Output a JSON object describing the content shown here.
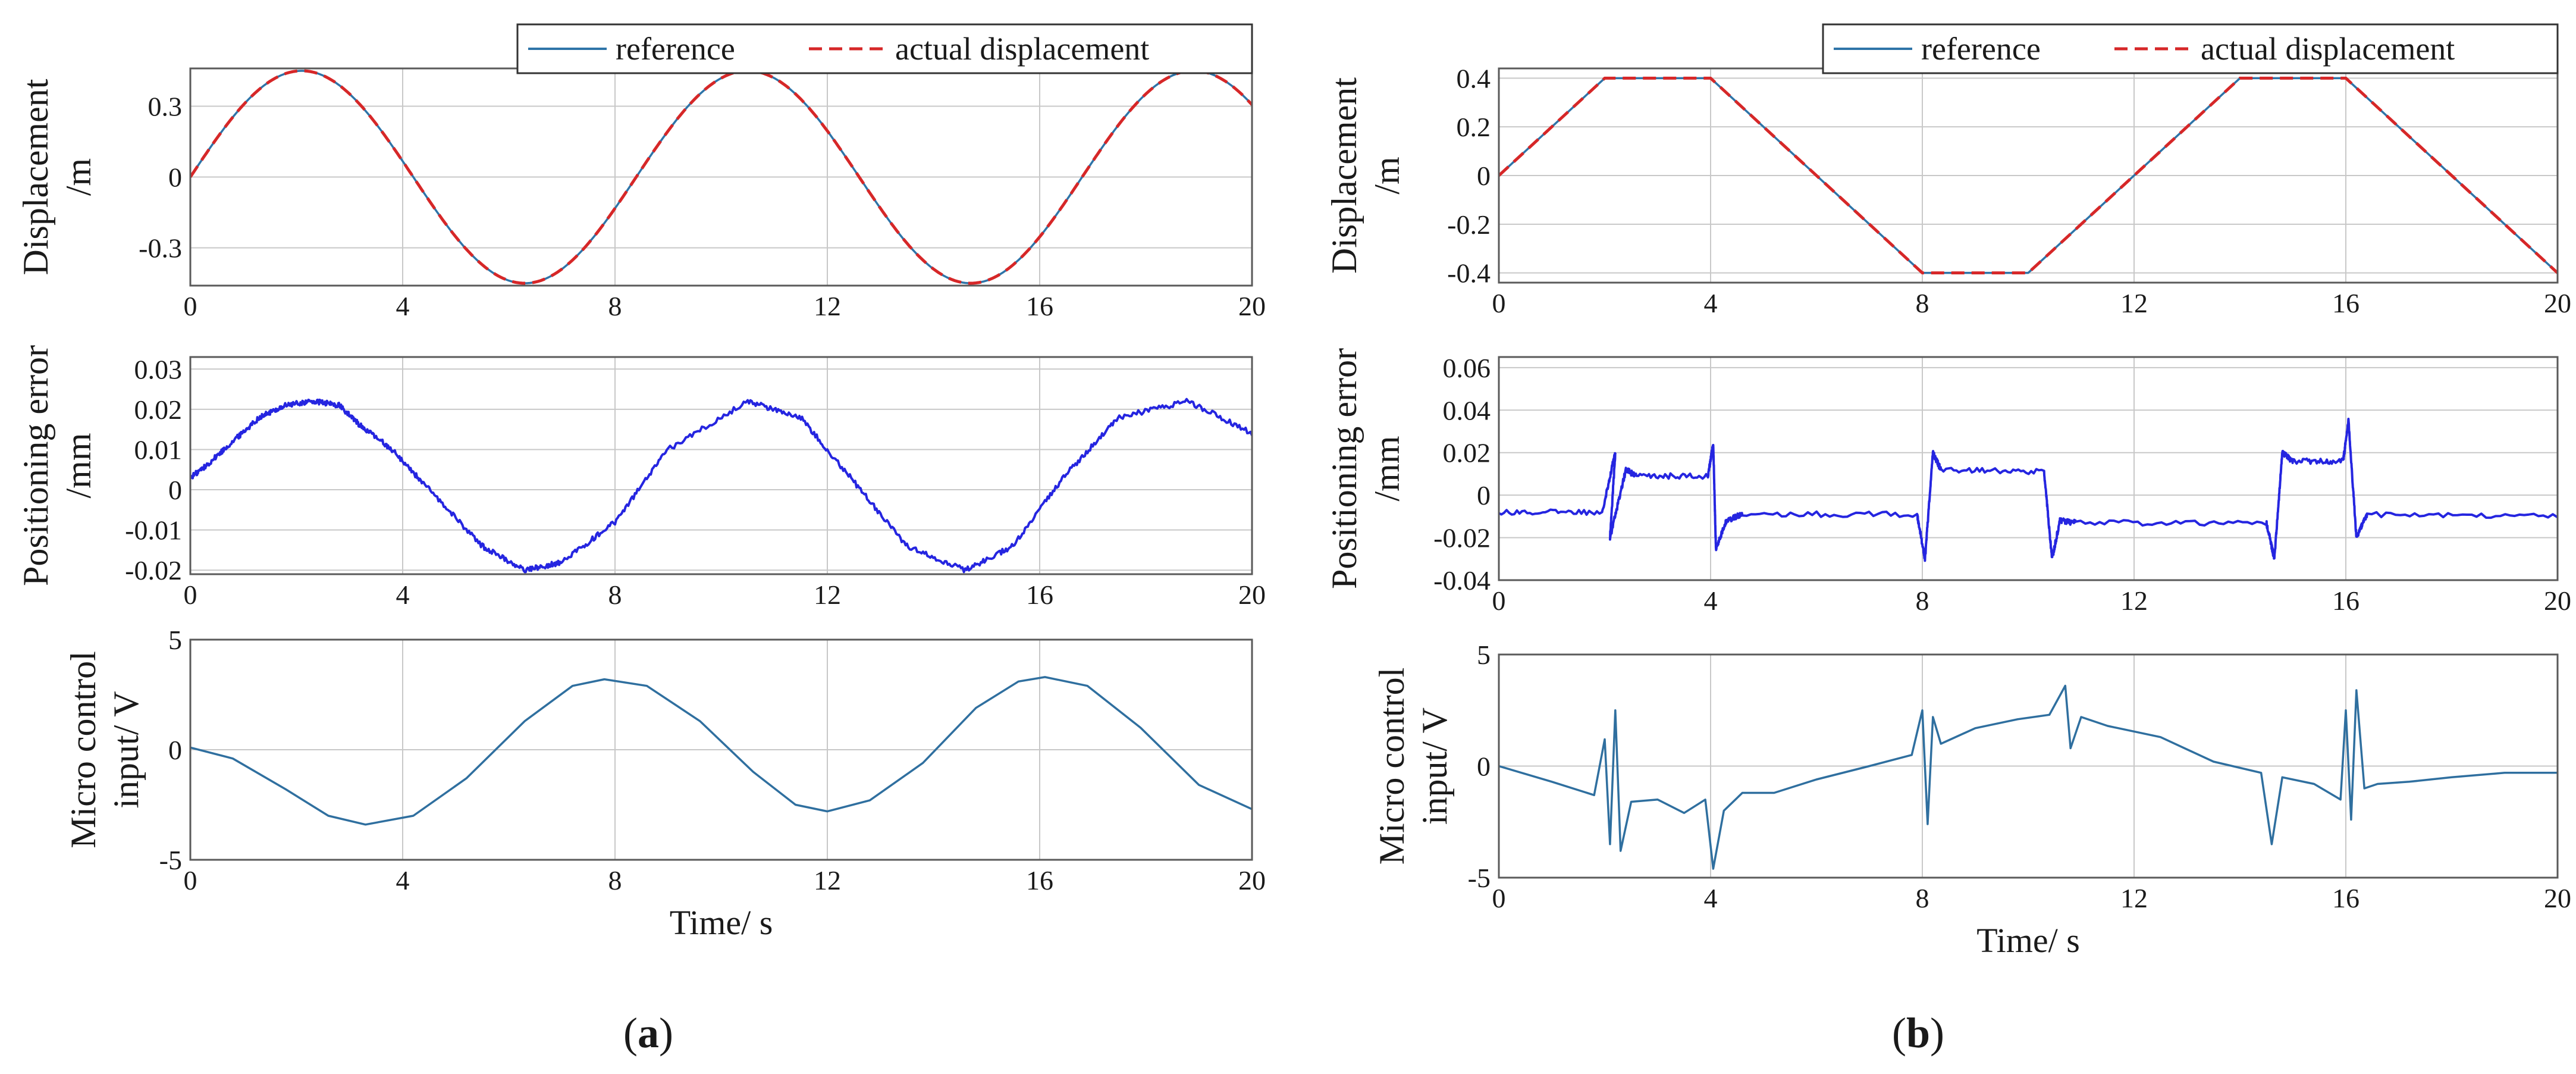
{
  "figure": {
    "colors": {
      "reference": "#2e74a8",
      "actual": "#d62728",
      "error": "#2525e0",
      "control": "#2f6f9f",
      "grid": "#c8c8c8",
      "axis": "#5a5a5a"
    },
    "panels": [
      {
        "label_pre": "(",
        "label_letter": "a",
        "label_post": ")"
      },
      {
        "label_pre": "(",
        "label_letter": "b",
        "label_post": ")"
      }
    ]
  },
  "chart_data": [
    {
      "id": "a1",
      "type": "line",
      "panel": "a",
      "ylabel_lines": [
        "Displacement",
        "/m"
      ],
      "xlim": [
        0,
        20
      ],
      "ylim": [
        -0.46,
        0.46
      ],
      "xticks": [
        0,
        4,
        8,
        12,
        16,
        20
      ],
      "yticks": [
        0.3,
        0,
        -0.3
      ],
      "ytick_labels": [
        "0.3",
        "0",
        "-0.3"
      ],
      "legend": [
        "reference",
        "actual displacement"
      ],
      "legend_position": "top-right",
      "series": [
        {
          "name": "reference",
          "color_key": "reference",
          "style": "solid",
          "formula": {
            "kind": "sine",
            "amp": 0.45,
            "period": 8.4,
            "offset": 0
          }
        },
        {
          "name": "actual displacement",
          "color_key": "actual",
          "style": "dashed",
          "formula": {
            "kind": "sine",
            "amp": 0.45,
            "period": 8.4,
            "offset": 0
          }
        }
      ]
    },
    {
      "id": "a2",
      "type": "line",
      "panel": "a",
      "ylabel_lines": [
        "Positioning error",
        "/mm"
      ],
      "xlim": [
        0,
        20
      ],
      "ylim": [
        -0.021,
        0.033
      ],
      "xticks": [
        0,
        4,
        8,
        12,
        16,
        20
      ],
      "yticks": [
        0.03,
        0.02,
        0.01,
        0,
        -0.01,
        -0.02
      ],
      "ytick_labels": [
        "0.03",
        "0.02",
        "0.01",
        "0",
        "-0.01",
        "-0.02"
      ],
      "series": [
        {
          "name": "positioning error",
          "color_key": "error",
          "style": "noisy",
          "points": [
            [
              0,
              0.003
            ],
            [
              0.3,
              0.006
            ],
            [
              0.8,
              0.012
            ],
            [
              1.3,
              0.018
            ],
            [
              1.8,
              0.021
            ],
            [
              2.3,
              0.022
            ],
            [
              2.8,
              0.021
            ],
            [
              3.2,
              0.016
            ],
            [
              3.8,
              0.01
            ],
            [
              4.5,
              0.0
            ],
            [
              5.5,
              -0.014
            ],
            [
              6.3,
              -0.02
            ],
            [
              7.0,
              -0.018
            ],
            [
              8.0,
              -0.008
            ],
            [
              9.0,
              0.01
            ],
            [
              10.5,
              0.022
            ],
            [
              11.5,
              0.018
            ],
            [
              12.5,
              0.002
            ],
            [
              13.5,
              -0.014
            ],
            [
              14.6,
              -0.02
            ],
            [
              15.5,
              -0.014
            ],
            [
              16.5,
              0.004
            ],
            [
              17.5,
              0.018
            ],
            [
              18.8,
              0.022
            ],
            [
              20,
              0.014
            ]
          ]
        }
      ]
    },
    {
      "id": "a3",
      "type": "line",
      "panel": "a",
      "ylabel_lines": [
        "Micro control",
        "input/ V"
      ],
      "xlabel": "Time/ s",
      "xlim": [
        0,
        20
      ],
      "ylim": [
        -5,
        5
      ],
      "xticks": [
        0,
        4,
        8,
        12,
        16,
        20
      ],
      "yticks": [
        5,
        0,
        -5
      ],
      "ytick_labels": [
        "5",
        "0",
        "-5"
      ],
      "series": [
        {
          "name": "control input",
          "color_key": "control",
          "style": "solid",
          "points": [
            [
              0,
              0.1
            ],
            [
              0.8,
              -0.4
            ],
            [
              1.8,
              -1.8
            ],
            [
              2.6,
              -3.0
            ],
            [
              3.3,
              -3.4
            ],
            [
              4.2,
              -3.0
            ],
            [
              5.2,
              -1.3
            ],
            [
              6.3,
              1.3
            ],
            [
              7.2,
              2.9
            ],
            [
              7.8,
              3.2
            ],
            [
              8.6,
              2.9
            ],
            [
              9.6,
              1.3
            ],
            [
              10.6,
              -1.0
            ],
            [
              11.4,
              -2.5
            ],
            [
              12.0,
              -2.8
            ],
            [
              12.8,
              -2.3
            ],
            [
              13.8,
              -0.6
            ],
            [
              14.8,
              1.9
            ],
            [
              15.6,
              3.1
            ],
            [
              16.1,
              3.3
            ],
            [
              16.9,
              2.9
            ],
            [
              17.9,
              1.0
            ],
            [
              19.0,
              -1.6
            ],
            [
              20,
              -2.7
            ]
          ]
        }
      ]
    },
    {
      "id": "b1",
      "type": "line",
      "panel": "b",
      "ylabel_lines": [
        "Displacement",
        "/m"
      ],
      "xlim": [
        0,
        20
      ],
      "ylim": [
        -0.44,
        0.44
      ],
      "xticks": [
        0,
        4,
        8,
        12,
        16,
        20
      ],
      "yticks": [
        0.4,
        0.2,
        0,
        -0.2,
        -0.4
      ],
      "ytick_labels": [
        "0.4",
        "0.2",
        "0",
        "-0.2",
        "-0.4"
      ],
      "legend": [
        "reference",
        "actual displacement"
      ],
      "legend_position": "top-right",
      "series": [
        {
          "name": "reference",
          "color_key": "reference",
          "style": "solid",
          "points": [
            [
              0,
              0
            ],
            [
              2,
              0.4
            ],
            [
              4,
              0.4
            ],
            [
              8,
              -0.4
            ],
            [
              10,
              -0.4
            ],
            [
              14,
              0.4
            ],
            [
              16,
              0.4
            ],
            [
              20,
              -0.4
            ]
          ]
        },
        {
          "name": "actual displacement",
          "color_key": "actual",
          "style": "dashed",
          "points": [
            [
              0,
              0
            ],
            [
              2,
              0.4
            ],
            [
              4,
              0.4
            ],
            [
              8,
              -0.4
            ],
            [
              10,
              -0.4
            ],
            [
              14,
              0.4
            ],
            [
              16,
              0.4
            ],
            [
              20,
              -0.4
            ]
          ]
        }
      ]
    },
    {
      "id": "b2",
      "type": "line",
      "panel": "b",
      "ylabel_lines": [
        "Positioning error",
        "/mm"
      ],
      "xlim": [
        0,
        20
      ],
      "ylim": [
        -0.04,
        0.065
      ],
      "xticks": [
        0,
        4,
        8,
        12,
        16,
        20
      ],
      "yticks": [
        0.06,
        0.04,
        0.02,
        0,
        -0.02,
        -0.04
      ],
      "ytick_labels": [
        "0.06",
        "0.04",
        "0.02",
        "0",
        "-0.02",
        "-0.04"
      ],
      "series": [
        {
          "name": "positioning error",
          "color_key": "error",
          "style": "noisy",
          "points": [
            [
              0,
              -0.008
            ],
            [
              1.95,
              -0.008
            ],
            [
              2.2,
              0.02
            ],
            [
              2.1,
              -0.02
            ],
            [
              2.4,
              0.012
            ],
            [
              2.6,
              0.009
            ],
            [
              3.95,
              0.009
            ],
            [
              4.05,
              0.024
            ],
            [
              4.1,
              -0.025
            ],
            [
              4.3,
              -0.012
            ],
            [
              4.6,
              -0.009
            ],
            [
              7.9,
              -0.009
            ],
            [
              8.05,
              -0.03
            ],
            [
              8.2,
              0.02
            ],
            [
              8.35,
              0.012
            ],
            [
              10.3,
              0.011
            ],
            [
              10.45,
              -0.03
            ],
            [
              10.6,
              -0.012
            ],
            [
              10.9,
              -0.013
            ],
            [
              14.5,
              -0.013
            ],
            [
              14.65,
              -0.03
            ],
            [
              14.8,
              0.02
            ],
            [
              15.0,
              0.016
            ],
            [
              15.95,
              0.016
            ],
            [
              16.05,
              0.035
            ],
            [
              16.2,
              -0.02
            ],
            [
              16.4,
              -0.009
            ],
            [
              20,
              -0.01
            ]
          ]
        }
      ]
    },
    {
      "id": "b3",
      "type": "line",
      "panel": "b",
      "ylabel_lines": [
        "Micro control",
        "input/ V"
      ],
      "xlabel": "Time/ s",
      "xlim": [
        0,
        20
      ],
      "ylim": [
        -5,
        5
      ],
      "xticks": [
        0,
        4,
        8,
        12,
        16,
        20
      ],
      "yticks": [
        5,
        0,
        -5
      ],
      "ytick_labels": [
        "5",
        "0",
        "-5"
      ],
      "series": [
        {
          "name": "control input",
          "color_key": "control",
          "style": "solid",
          "points": [
            [
              0,
              0
            ],
            [
              1.0,
              -0.7
            ],
            [
              1.8,
              -1.3
            ],
            [
              2.0,
              1.2
            ],
            [
              2.1,
              -3.5
            ],
            [
              2.2,
              2.5
            ],
            [
              2.3,
              -3.8
            ],
            [
              2.5,
              -1.6
            ],
            [
              3.0,
              -1.5
            ],
            [
              3.5,
              -2.1
            ],
            [
              3.9,
              -1.5
            ],
            [
              4.05,
              -4.6
            ],
            [
              4.25,
              -2.0
            ],
            [
              4.6,
              -1.2
            ],
            [
              5.2,
              -1.2
            ],
            [
              6.0,
              -0.6
            ],
            [
              7.0,
              0
            ],
            [
              7.8,
              0.5
            ],
            [
              8.0,
              2.5
            ],
            [
              8.1,
              -2.6
            ],
            [
              8.2,
              2.2
            ],
            [
              8.35,
              1.0
            ],
            [
              9.0,
              1.7
            ],
            [
              9.8,
              2.1
            ],
            [
              10.4,
              2.3
            ],
            [
              10.7,
              3.6
            ],
            [
              10.8,
              0.8
            ],
            [
              11.0,
              2.2
            ],
            [
              11.5,
              1.8
            ],
            [
              12.5,
              1.3
            ],
            [
              13.5,
              0.2
            ],
            [
              14.4,
              -0.3
            ],
            [
              14.6,
              -3.5
            ],
            [
              14.8,
              -0.5
            ],
            [
              15.4,
              -0.8
            ],
            [
              15.9,
              -1.5
            ],
            [
              16.0,
              2.5
            ],
            [
              16.1,
              -2.4
            ],
            [
              16.2,
              3.4
            ],
            [
              16.35,
              -1.0
            ],
            [
              16.6,
              -0.8
            ],
            [
              17.2,
              -0.7
            ],
            [
              18.0,
              -0.5
            ],
            [
              19.0,
              -0.3
            ],
            [
              20,
              -0.3
            ]
          ]
        }
      ]
    }
  ]
}
